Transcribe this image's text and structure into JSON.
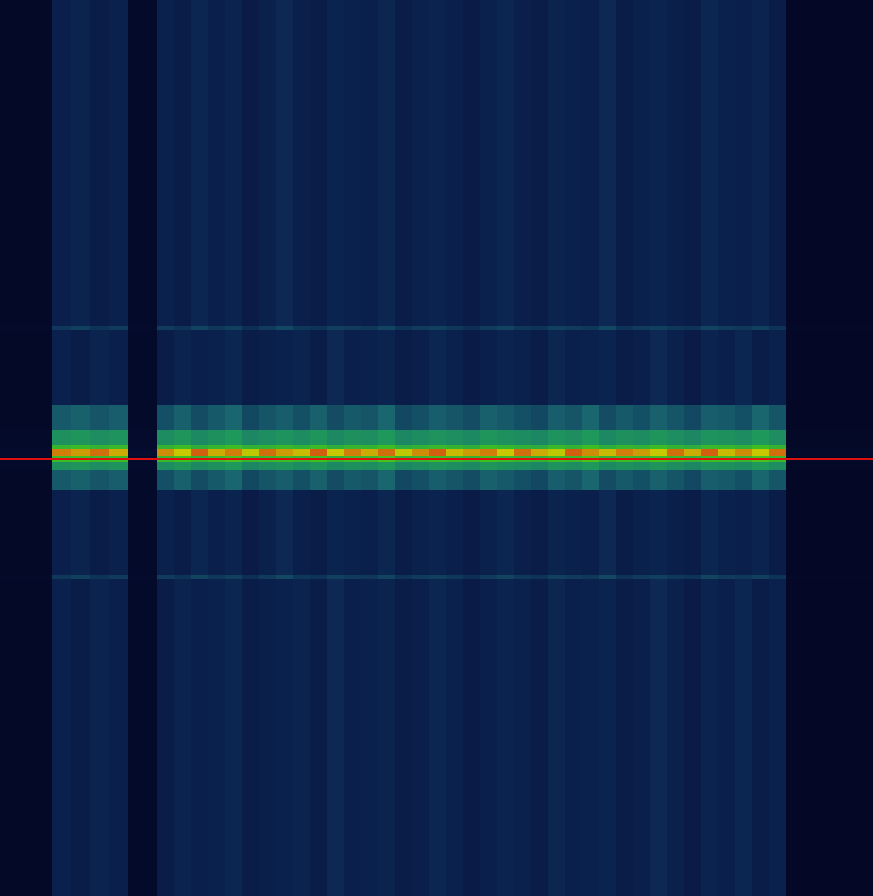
{
  "chart_data": {
    "type": "heatmap",
    "x": [
      0,
      52,
      71,
      90,
      109,
      128,
      157,
      174,
      191,
      208,
      225,
      242,
      259,
      276,
      293,
      310,
      327,
      344,
      361,
      378,
      395,
      412,
      429,
      446,
      463,
      480,
      497,
      514,
      531,
      548,
      565,
      582,
      599,
      616,
      633,
      650,
      667,
      684,
      701,
      718,
      735,
      752,
      769,
      786,
      873
    ],
    "y": [
      0,
      326,
      330,
      405,
      430,
      445,
      449,
      456,
      462,
      470,
      490,
      575,
      579,
      896
    ],
    "z": [
      [
        4,
        20,
        22,
        19,
        21,
        5,
        21,
        19,
        23,
        20,
        22,
        18,
        21,
        24,
        20,
        19,
        22,
        21,
        20,
        23,
        19,
        21,
        22,
        20,
        18,
        21,
        23,
        20,
        19,
        22,
        21,
        20,
        24,
        19,
        21,
        22,
        20,
        19,
        23,
        21,
        20,
        22,
        19,
        3
      ],
      [
        5,
        28,
        30,
        27,
        29,
        6,
        29,
        27,
        31,
        28,
        30,
        26,
        29,
        32,
        28,
        27,
        30,
        29,
        28,
        31,
        27,
        29,
        30,
        28,
        26,
        29,
        31,
        28,
        27,
        30,
        29,
        28,
        32,
        27,
        29,
        30,
        28,
        27,
        31,
        29,
        28,
        30,
        27,
        4
      ],
      [
        4,
        21,
        19,
        22,
        20,
        5,
        19,
        22,
        20,
        21,
        23,
        19,
        20,
        21,
        22,
        19,
        24,
        20,
        21,
        22,
        19,
        20,
        23,
        21,
        18,
        20,
        22,
        21,
        19,
        23,
        20,
        21,
        22,
        19,
        20,
        24,
        21,
        18,
        22,
        20,
        23,
        19,
        21,
        3
      ],
      [
        4,
        36,
        38,
        35,
        37,
        5,
        34,
        38,
        33,
        36,
        39,
        32,
        35,
        37,
        34,
        38,
        33,
        36,
        35,
        39,
        32,
        34,
        37,
        35,
        33,
        38,
        36,
        34,
        32,
        37,
        35,
        39,
        33,
        36,
        34,
        38,
        35,
        32,
        37,
        36,
        34,
        39,
        35,
        3
      ],
      [
        5,
        56,
        58,
        55,
        57,
        6,
        54,
        58,
        53,
        56,
        59,
        52,
        55,
        57,
        54,
        58,
        53,
        56,
        55,
        59,
        52,
        54,
        57,
        55,
        53,
        58,
        56,
        54,
        52,
        57,
        55,
        59,
        53,
        56,
        54,
        58,
        55,
        52,
        57,
        56,
        54,
        59,
        55,
        4
      ],
      [
        5,
        71,
        73,
        70,
        72,
        6,
        70,
        73,
        68,
        71,
        74,
        69,
        70,
        72,
        69,
        73,
        68,
        71,
        70,
        74,
        67,
        69,
        72,
        70,
        68,
        73,
        71,
        69,
        67,
        72,
        70,
        74,
        68,
        71,
        69,
        73,
        70,
        67,
        72,
        71,
        69,
        74,
        70,
        4
      ],
      [
        6,
        93,
        91,
        94,
        90,
        8,
        92,
        88,
        95,
        90,
        93,
        87,
        94,
        91,
        89,
        95,
        88,
        93,
        90,
        94,
        87,
        92,
        95,
        89,
        91,
        93,
        88,
        94,
        90,
        87,
        95,
        92,
        89,
        93,
        91,
        88,
        94,
        90,
        95,
        89,
        92,
        88,
        94,
        5
      ],
      [
        5,
        73,
        75,
        72,
        74,
        6,
        72,
        75,
        70,
        73,
        76,
        71,
        72,
        74,
        71,
        75,
        70,
        73,
        72,
        76,
        69,
        71,
        74,
        72,
        70,
        75,
        73,
        71,
        69,
        74,
        72,
        76,
        70,
        73,
        71,
        75,
        72,
        69,
        74,
        73,
        71,
        76,
        72,
        4
      ],
      [
        5,
        56,
        58,
        55,
        57,
        6,
        54,
        58,
        53,
        56,
        59,
        52,
        55,
        57,
        54,
        58,
        53,
        56,
        55,
        59,
        52,
        54,
        57,
        55,
        53,
        58,
        56,
        54,
        52,
        57,
        55,
        59,
        53,
        56,
        54,
        58,
        55,
        52,
        57,
        56,
        54,
        59,
        55,
        4
      ],
      [
        4,
        36,
        38,
        35,
        37,
        5,
        34,
        38,
        33,
        36,
        39,
        32,
        35,
        37,
        34,
        38,
        33,
        36,
        35,
        39,
        32,
        34,
        37,
        35,
        33,
        38,
        36,
        34,
        32,
        37,
        35,
        39,
        33,
        36,
        34,
        38,
        35,
        32,
        37,
        36,
        34,
        39,
        35,
        3
      ],
      [
        4,
        20,
        22,
        19,
        21,
        5,
        21,
        19,
        23,
        20,
        22,
        18,
        21,
        24,
        20,
        19,
        22,
        21,
        20,
        23,
        19,
        21,
        22,
        20,
        18,
        21,
        23,
        20,
        19,
        22,
        21,
        20,
        24,
        19,
        21,
        22,
        20,
        19,
        23,
        21,
        20,
        22,
        19,
        3
      ],
      [
        5,
        28,
        30,
        27,
        29,
        6,
        29,
        27,
        31,
        28,
        30,
        26,
        29,
        32,
        28,
        27,
        30,
        29,
        28,
        31,
        27,
        29,
        30,
        28,
        26,
        29,
        31,
        28,
        27,
        30,
        29,
        28,
        32,
        27,
        29,
        30,
        28,
        27,
        31,
        29,
        28,
        30,
        27,
        4
      ],
      [
        4,
        21,
        19,
        22,
        20,
        5,
        19,
        22,
        20,
        21,
        23,
        19,
        20,
        21,
        22,
        19,
        24,
        20,
        21,
        22,
        19,
        20,
        23,
        21,
        18,
        20,
        22,
        21,
        19,
        23,
        20,
        21,
        22,
        19,
        20,
        24,
        21,
        18,
        22,
        20,
        23,
        19,
        21,
        3
      ]
    ],
    "xlim": [
      0,
      873
    ],
    "ylim": [
      896,
      0
    ],
    "zlim": [
      0,
      100
    ],
    "tick_labels": false,
    "grid": false,
    "reference_line": {
      "y": 459,
      "color": "#e01010"
    }
  }
}
